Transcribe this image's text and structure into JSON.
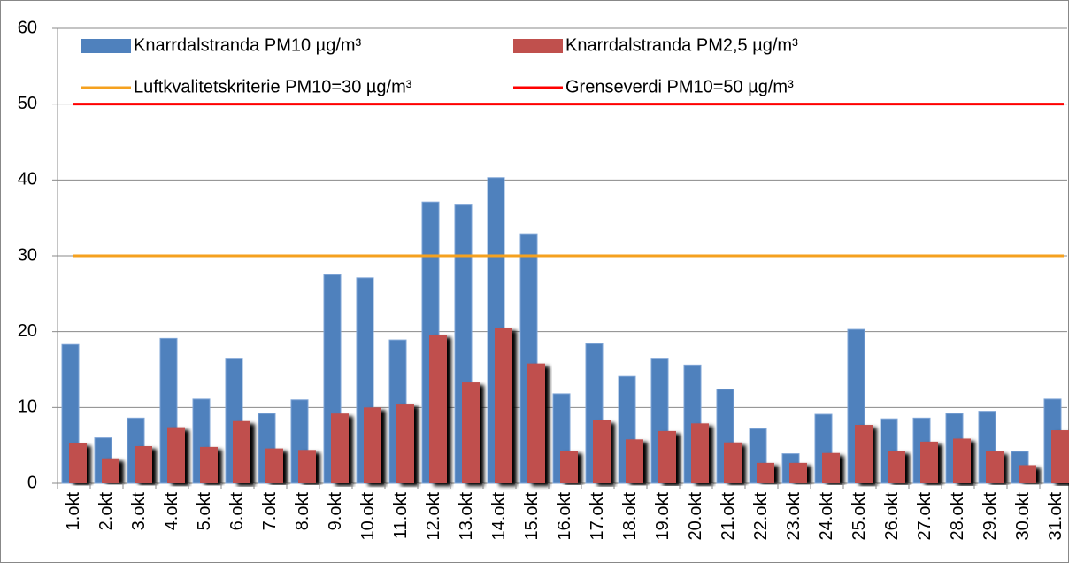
{
  "chart_data": {
    "type": "bar",
    "categories": [
      "1.okt",
      "2.okt",
      "3.okt",
      "4.okt",
      "5.okt",
      "6.okt",
      "7.okt",
      "8.okt",
      "9.okt",
      "10.okt",
      "11.okt",
      "12.okt",
      "13.okt",
      "14.okt",
      "15.okt",
      "16.okt",
      "17.okt",
      "18.okt",
      "19.okt",
      "20.okt",
      "21.okt",
      "22.okt",
      "23.okt",
      "24.okt",
      "25.okt",
      "26.okt",
      "27.okt",
      "28.okt",
      "29.okt",
      "30.okt",
      "31.okt"
    ],
    "series": [
      {
        "name": "Knarrdalstranda  PM10  µg/m³",
        "color": "#4f81bd",
        "values": [
          18.3,
          6.0,
          8.6,
          19.1,
          11.1,
          16.5,
          9.2,
          11.0,
          27.5,
          27.1,
          18.9,
          37.1,
          36.7,
          40.3,
          32.9,
          11.8,
          18.4,
          14.1,
          16.5,
          15.6,
          12.4,
          7.2,
          3.9,
          9.1,
          20.3,
          8.5,
          8.6,
          9.2,
          9.5,
          4.2,
          11.1
        ]
      },
      {
        "name": "Knarrdalstranda  PM2,5  µg/m³",
        "color": "#c0504d",
        "values": [
          5.3,
          3.3,
          4.9,
          7.4,
          4.8,
          8.2,
          4.6,
          4.4,
          9.2,
          10.0,
          10.5,
          19.6,
          13.3,
          20.5,
          15.8,
          4.3,
          8.3,
          5.8,
          6.9,
          7.9,
          5.4,
          2.7,
          2.7,
          4.0,
          7.7,
          4.3,
          5.5,
          5.9,
          4.2,
          2.4,
          7.0
        ]
      }
    ],
    "reference_lines": [
      {
        "name": "Luftkvalitetskriterie PM10=30 µg/m³",
        "value": 30,
        "color": "#f5a11f"
      },
      {
        "name": "Grenseverdi PM10=50 µg/m³",
        "value": 50,
        "color": "#ff0000"
      }
    ],
    "ylim": [
      0,
      60
    ],
    "yticks": [
      0,
      10,
      20,
      30,
      40,
      50,
      60
    ],
    "grid": true
  }
}
